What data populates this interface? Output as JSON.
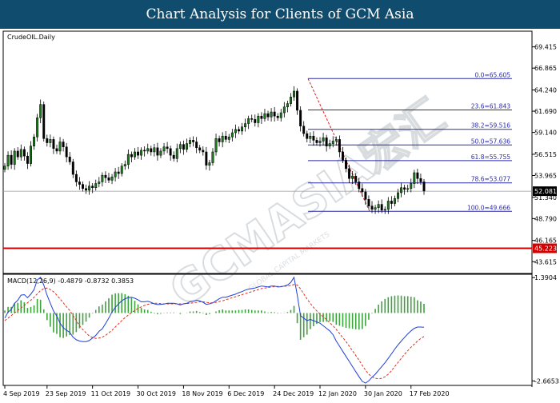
{
  "header": {
    "title": "Chart Analysis for Clients of GCM Asia"
  },
  "watermark": {
    "text": "GCMASIA宏汇",
    "subtext": "GLOBAL CAPITAL MARKETS"
  },
  "colors": {
    "header_bg": "#0f4c6e",
    "candle_up": "#1a7a1a",
    "candle_down": "#000000",
    "fib_line": "#2a2aa8",
    "fib_diag": "#d42020",
    "support_line": "#d40000",
    "macd_line": "#1f3fd8",
    "signal_line": "#e0301e",
    "hist_color": "#3ea23e"
  },
  "chart_data": [
    {
      "type": "candlestick",
      "title": "CrudeOIL.Daily",
      "x_tick_labels": [
        "4 Sep 2019",
        "23 Sep 2019",
        "11 Oct 2019",
        "30 Oct 2019",
        "18 Nov 2019",
        "6 Dec 2019",
        "24 Dec 2019",
        "12 Jan 2020",
        "30 Jan 2020",
        "17 Feb 2020"
      ],
      "y_tick_labels": [
        "69.415",
        "66.865",
        "64.240",
        "61.690",
        "59.140",
        "56.515",
        "53.965",
        "51.340",
        "48.790",
        "46.165",
        "43.615"
      ],
      "ylim": [
        42.2,
        71.3
      ],
      "current_price": "52.081",
      "support_price": "45.223",
      "close": [
        55.1,
        56.4,
        55.3,
        56.9,
        56.2,
        57.1,
        56.3,
        55.4,
        57.5,
        58.6,
        60.9,
        62.5,
        58.4,
        57.9,
        58.3,
        57.2,
        56.9,
        58.0,
        57.4,
        56.2,
        55.6,
        54.1,
        53.2,
        52.9,
        52.4,
        52.2,
        52.7,
        52.5,
        53.0,
        53.2,
        54.0,
        53.7,
        53.4,
        53.8,
        54.4,
        54.2,
        55.1,
        55.3,
        56.5,
        56.2,
        56.8,
        56.4,
        57.0,
        56.9,
        57.2,
        56.8,
        57.3,
        56.4,
        56.9,
        57.4,
        57.2,
        56.4,
        56.0,
        57.2,
        57.7,
        57.1,
        57.8,
        58.2,
        58.0,
        57.3,
        57.0,
        56.8,
        55.2,
        55.5,
        56.8,
        58.4,
        58.0,
        58.7,
        58.3,
        58.6,
        59.1,
        59.5,
        59.3,
        59.8,
        60.2,
        60.8,
        60.7,
        60.3,
        61.1,
        60.8,
        61.4,
        61.0,
        61.6,
        61.1,
        60.9,
        61.5,
        62.2,
        62.6,
        63.4,
        64.1,
        61.8,
        59.9,
        59.0,
        58.4,
        58.7,
        58.2,
        57.9,
        58.1,
        58.5,
        57.5,
        57.8,
        58.1,
        58.3,
        56.8,
        55.8,
        54.8,
        53.6,
        53.9,
        53.2,
        52.4,
        52.0,
        51.1,
        50.3,
        49.9,
        50.1,
        50.5,
        49.8,
        49.9,
        50.9,
        50.6,
        51.2,
        51.9,
        52.5,
        52.3,
        52.4,
        53.0,
        54.3,
        53.6,
        53.2,
        52.1
      ]
    },
    {
      "type": "fibonacci_retracement",
      "levels": [
        {
          "label": "0.0=65.605",
          "value": 65.605
        },
        {
          "label": "23.6=61.843",
          "value": 61.843
        },
        {
          "label": "38.2=59.516",
          "value": 59.516
        },
        {
          "label": "50.0=57.636",
          "value": 57.636
        },
        {
          "label": "61.8=55.755",
          "value": 55.755
        },
        {
          "label": "78.6=53.077",
          "value": 53.077
        },
        {
          "label": "100.0=49.666",
          "value": 49.666
        }
      ]
    },
    {
      "type": "line",
      "title": "MACD(12,26,9) -0.4879 -0.8732 0.3853",
      "y_tick_labels": [
        "1.3904",
        "-2.6653"
      ],
      "ylim": [
        -2.84,
        1.52
      ],
      "series": [
        {
          "name": "MACD",
          "values": [
            -0.2,
            0.04,
            0.14,
            0.38,
            0.5,
            0.7,
            0.72,
            0.6,
            0.74,
            0.92,
            1.3,
            1.4,
            1.1,
            0.7,
            0.38,
            0.08,
            -0.12,
            -0.4,
            -0.58,
            -0.68,
            -0.76,
            -0.95,
            -1.05,
            -1.1,
            -1.12,
            -1.12,
            -1.08,
            -0.98,
            -0.88,
            -0.72,
            -0.62,
            -0.42,
            -0.2,
            0.04,
            0.22,
            0.36,
            0.48,
            0.56,
            0.6,
            0.62,
            0.58,
            0.52,
            0.44,
            0.44,
            0.46,
            0.42,
            0.36,
            0.33,
            0.34,
            0.35,
            0.38,
            0.38,
            0.38,
            0.36,
            0.32,
            0.36,
            0.38,
            0.44,
            0.46,
            0.5,
            0.48,
            0.42,
            0.34,
            0.36,
            0.4,
            0.48,
            0.56,
            0.62,
            0.62,
            0.66,
            0.7,
            0.74,
            0.8,
            0.84,
            0.9,
            0.94,
            0.96,
            0.98,
            1.02,
            1.06,
            1.04,
            1.02,
            1.06,
            1.06,
            1.02,
            1.03,
            1.06,
            1.1,
            1.2,
            1.4,
            0.7,
            -0.1,
            -0.2,
            -0.3,
            -0.25,
            -0.3,
            -0.35,
            -0.4,
            -0.5,
            -0.6,
            -0.7,
            -0.85,
            -1.1,
            -1.3,
            -1.5,
            -1.7,
            -1.9,
            -2.1,
            -2.3,
            -2.5,
            -2.68,
            -2.75,
            -2.66,
            -2.52,
            -2.4,
            -2.25,
            -2.1,
            -1.95,
            -1.78,
            -1.6,
            -1.42,
            -1.25,
            -1.1,
            -0.96,
            -0.82,
            -0.7,
            -0.6,
            -0.55,
            -0.55,
            -0.56
          ]
        },
        {
          "name": "Signal",
          "values": [
            -0.3,
            -0.2,
            -0.1,
            0.0,
            0.1,
            0.2,
            0.3,
            0.4,
            0.5,
            0.62,
            0.75,
            0.88,
            0.96,
            0.98,
            0.92,
            0.84,
            0.7,
            0.55,
            0.4,
            0.24,
            0.1,
            -0.1,
            -0.3,
            -0.5,
            -0.65,
            -0.78,
            -0.9,
            -0.96,
            -1.0,
            -0.98,
            -0.95,
            -0.88,
            -0.78,
            -0.68,
            -0.55,
            -0.42,
            -0.3,
            -0.18,
            -0.08,
            0.02,
            0.1,
            0.18,
            0.24,
            0.3,
            0.34,
            0.37,
            0.38,
            0.38,
            0.37,
            0.36,
            0.36,
            0.36,
            0.36,
            0.36,
            0.36,
            0.36,
            0.37,
            0.38,
            0.4,
            0.42,
            0.44,
            0.44,
            0.42,
            0.4,
            0.4,
            0.42,
            0.45,
            0.48,
            0.52,
            0.56,
            0.6,
            0.64,
            0.68,
            0.72,
            0.76,
            0.8,
            0.84,
            0.88,
            0.92,
            0.96,
            0.98,
            1.0,
            1.02,
            1.03,
            1.04,
            1.04,
            1.05,
            1.06,
            1.08,
            1.12,
            1.1,
            0.95,
            0.75,
            0.55,
            0.38,
            0.22,
            0.08,
            -0.04,
            -0.15,
            -0.26,
            -0.38,
            -0.5,
            -0.64,
            -0.8,
            -0.96,
            -1.12,
            -1.3,
            -1.48,
            -1.66,
            -1.85,
            -2.05,
            -2.24,
            -2.4,
            -2.5,
            -2.56,
            -2.58,
            -2.56,
            -2.5,
            -2.4,
            -2.26,
            -2.1,
            -1.94,
            -1.78,
            -1.62,
            -1.48,
            -1.34,
            -1.22,
            -1.1,
            -1.0,
            -0.92
          ]
        },
        {
          "name": "Histogram",
          "values": [
            0.1,
            0.24,
            0.24,
            0.38,
            0.4,
            0.5,
            0.42,
            0.2,
            0.24,
            0.3,
            0.55,
            0.52,
            0.14,
            -0.28,
            -0.54,
            -0.76,
            -0.82,
            -0.95,
            -0.98,
            -0.92,
            -0.86,
            -0.85,
            -0.75,
            -0.6,
            -0.47,
            -0.34,
            -0.18,
            -0.02,
            0.12,
            0.26,
            0.33,
            0.46,
            0.58,
            0.72,
            0.77,
            0.78,
            0.78,
            0.74,
            0.68,
            0.6,
            0.48,
            0.34,
            0.2,
            0.14,
            0.12,
            0.05,
            -0.02,
            -0.05,
            -0.03,
            -0.01,
            0.02,
            0.02,
            0.02,
            0.0,
            -0.04,
            0.0,
            0.01,
            0.06,
            0.06,
            0.08,
            0.04,
            -0.02,
            -0.08,
            -0.04,
            0.0,
            0.06,
            0.11,
            0.14,
            0.1,
            0.1,
            0.1,
            0.1,
            0.12,
            0.12,
            0.14,
            0.14,
            0.12,
            0.1,
            0.1,
            0.1,
            0.06,
            0.02,
            0.04,
            0.03,
            -0.02,
            -0.01,
            0.01,
            0.04,
            0.12,
            0.28,
            -0.4,
            -1.05,
            -0.95,
            -0.85,
            -0.63,
            -0.52,
            -0.43,
            -0.36,
            -0.35,
            -0.34,
            -0.32,
            -0.35,
            -0.46,
            -0.5,
            -0.54,
            -0.58,
            -0.6,
            -0.62,
            -0.64,
            -0.65,
            -0.63,
            -0.51,
            -0.26,
            -0.02,
            0.16,
            0.33,
            0.46,
            0.55,
            0.62,
            0.66,
            0.68,
            0.69,
            0.68,
            0.66,
            0.66,
            0.64,
            0.62,
            0.5,
            0.45,
            0.36
          ]
        }
      ]
    }
  ]
}
